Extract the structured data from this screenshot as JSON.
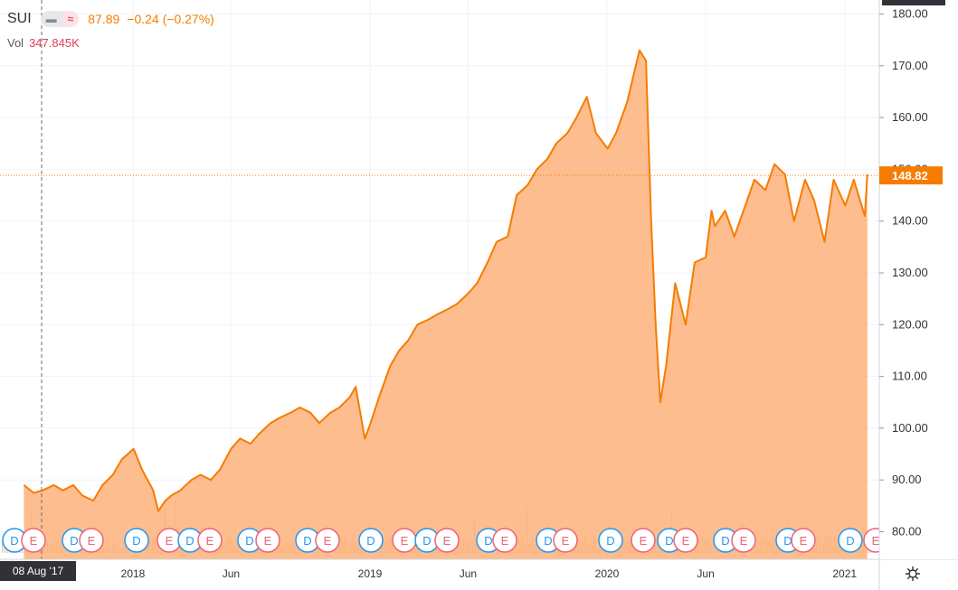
{
  "legend": {
    "symbol": "SUI",
    "price": "87.89",
    "change": "−0.24 (−0.27%)",
    "volume_label": "Vol",
    "volume_value": "347.845K"
  },
  "crosshair_date": "08 Aug '17",
  "icons": [
    "series-toggle-icon",
    "compare-icon",
    "gear-icon"
  ],
  "colors": {
    "line": "#f57c00",
    "fill": "#fdb27a",
    "dividend_marker": "#2196f3",
    "earnings_marker": "#f06274",
    "price_tag": "#f57c00",
    "volume_bars": "#e3c9a8"
  },
  "chart_data": {
    "type": "area",
    "title": "",
    "xlabel": "",
    "ylabel": "",
    "symbol": "SUI",
    "current_value": "148.82",
    "x_ticks": [
      "2018",
      "Jun",
      "2019",
      "Jun",
      "2020",
      "Jun",
      "2021"
    ],
    "y_ticks": [
      "80.00",
      "90.00",
      "100.00",
      "110.00",
      "120.00",
      "130.00",
      "140.00",
      "150.00",
      "160.00",
      "170.00",
      "180.00"
    ],
    "ylim": [
      77,
      184
    ],
    "grid": true,
    "x": [
      "2017-07-17",
      "2017-08-01",
      "2017-08-15",
      "2017-09-01",
      "2017-09-15",
      "2017-10-01",
      "2017-10-15",
      "2017-11-01",
      "2017-11-15",
      "2017-12-01",
      "2017-12-15",
      "2018-01-02",
      "2018-01-15",
      "2018-02-01",
      "2018-02-09",
      "2018-02-20",
      "2018-03-01",
      "2018-03-15",
      "2018-04-01",
      "2018-04-15",
      "2018-05-01",
      "2018-05-15",
      "2018-06-01",
      "2018-06-15",
      "2018-07-01",
      "2018-07-15",
      "2018-08-01",
      "2018-08-15",
      "2018-09-01",
      "2018-09-15",
      "2018-10-01",
      "2018-10-15",
      "2018-11-01",
      "2018-11-15",
      "2018-12-01",
      "2018-12-10",
      "2018-12-24",
      "2019-01-02",
      "2019-01-15",
      "2019-02-01",
      "2019-02-15",
      "2019-03-01",
      "2019-03-15",
      "2019-04-01",
      "2019-04-15",
      "2019-05-01",
      "2019-05-15",
      "2019-06-01",
      "2019-06-15",
      "2019-07-01",
      "2019-07-15",
      "2019-08-01",
      "2019-08-15",
      "2019-09-01",
      "2019-09-15",
      "2019-10-01",
      "2019-10-15",
      "2019-11-01",
      "2019-11-15",
      "2019-12-01",
      "2019-12-15",
      "2020-01-02",
      "2020-01-15",
      "2020-02-01",
      "2020-02-20",
      "2020-03-01",
      "2020-03-09",
      "2020-03-16",
      "2020-03-23",
      "2020-04-01",
      "2020-04-15",
      "2020-05-01",
      "2020-05-15",
      "2020-06-01",
      "2020-06-10",
      "2020-06-15",
      "2020-07-01",
      "2020-07-15",
      "2020-08-01",
      "2020-08-15",
      "2020-09-01",
      "2020-09-15",
      "2020-10-01",
      "2020-10-15",
      "2020-11-01",
      "2020-11-15",
      "2020-12-01",
      "2020-12-15",
      "2021-01-02",
      "2021-01-15",
      "2021-02-01",
      "2021-02-05"
    ],
    "values": [
      89,
      87.5,
      88,
      89,
      88,
      89,
      87,
      86,
      89,
      91,
      94,
      96,
      92,
      88,
      84,
      86,
      87,
      88,
      90,
      91,
      90,
      92,
      96,
      98,
      97,
      99,
      101,
      102,
      103,
      104,
      103,
      101,
      103,
      104,
      106,
      108,
      98,
      101,
      106,
      112,
      115,
      117,
      120,
      121,
      122,
      123,
      124,
      126,
      128,
      132,
      136,
      137,
      145,
      147,
      150,
      152,
      155,
      157,
      160,
      164,
      157,
      154,
      157,
      163,
      173,
      171,
      140,
      120,
      105,
      112,
      128,
      120,
      132,
      133,
      142,
      139,
      142,
      137,
      143,
      148,
      146,
      151,
      149,
      140,
      148,
      144,
      136,
      148,
      143,
      148,
      141,
      149
    ]
  }
}
